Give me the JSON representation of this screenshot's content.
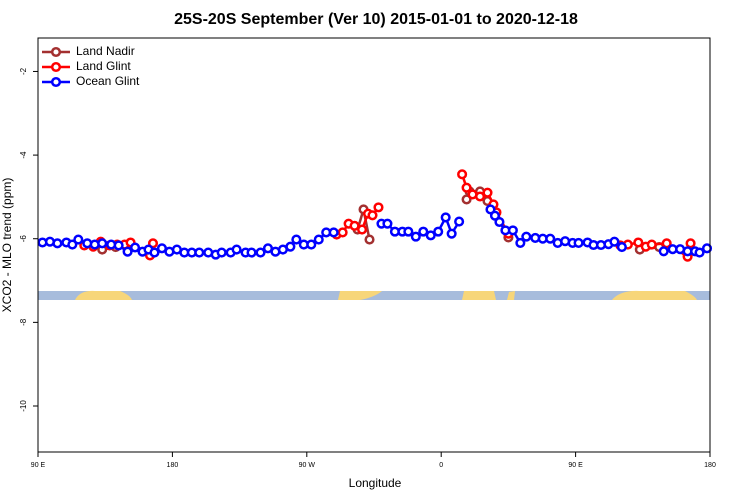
{
  "chart_data": {
    "type": "line",
    "title": "25S-20S September (Ver 10)   2015-01-01 to 2020-12-18",
    "x_label": "Longitude",
    "y_label": "XCO2 - MLO trend (ppm)",
    "xlim": [
      90,
      540
    ],
    "xticks": [
      {
        "value": 90,
        "label": "90 E"
      },
      {
        "value": 180,
        "label": "180"
      },
      {
        "value": 270,
        "label": "90 W"
      },
      {
        "value": 360,
        "label": "0"
      },
      {
        "value": 450,
        "label": "90 E"
      },
      {
        "value": 540,
        "label": "180"
      }
    ],
    "ylim": [
      -11.1,
      -1.2
    ],
    "yticks": [
      -10,
      -8,
      -6,
      -4,
      -2
    ],
    "legend": "top-left",
    "series": [
      {
        "name": "Land Nadir",
        "color": "#a33030",
        "x": [
          133,
          142,
          null,
          304,
          308,
          312,
          null,
          377,
          379,
          386,
          391,
          394,
          405,
          null,
          493,
          506
        ],
        "values": [
          -6.26,
          -6.2,
          null,
          -5.78,
          -5.3,
          -6.02,
          null,
          -5.06,
          -4.87,
          -4.87,
          -5.1,
          -5.25,
          -5.97,
          null,
          -6.26,
          -6.2
        ]
      },
      {
        "name": "Land Glint",
        "color": "#ff0000",
        "x": [
          121,
          127,
          132,
          138,
          143,
          148,
          152,
          165,
          167,
          null,
          290,
          294,
          298,
          302,
          307,
          311,
          314,
          318,
          null,
          374,
          377,
          381,
          386,
          391,
          395,
          397,
          405,
          null,
          480,
          485,
          492,
          497,
          501,
          511,
          525,
          527
        ],
        "values": [
          -6.16,
          -6.19,
          -6.07,
          -6.16,
          -6.14,
          -6.14,
          -6.09,
          -6.4,
          -6.11,
          null,
          -5.9,
          -5.85,
          -5.64,
          -5.69,
          -5.78,
          -5.4,
          -5.44,
          -5.25,
          null,
          -4.46,
          -4.78,
          -4.94,
          -4.99,
          -4.9,
          -5.18,
          -5.37,
          -5.88,
          null,
          -6.16,
          -6.14,
          -6.09,
          -6.19,
          -6.14,
          -6.11,
          -6.43,
          -6.11
        ]
      },
      {
        "name": "Ocean Glint",
        "color": "#0000ff",
        "x": [
          93,
          98,
          103,
          109,
          113,
          117,
          123,
          128,
          133,
          139,
          144,
          150,
          155,
          160,
          164,
          168,
          173,
          178,
          183,
          188,
          193,
          198,
          204,
          209,
          213,
          219,
          223,
          229,
          233,
          239,
          244,
          249,
          254,
          259,
          263,
          268,
          273,
          278,
          283,
          288,
          null,
          320,
          324,
          329,
          334,
          338,
          343,
          348,
          353,
          358,
          363,
          367,
          372,
          null,
          393,
          396,
          399,
          403,
          408,
          413,
          417,
          423,
          428,
          433,
          438,
          443,
          448,
          452,
          458,
          462,
          467,
          472,
          476,
          481,
          null,
          509,
          515,
          520,
          525,
          530,
          533,
          538
        ],
        "values": [
          -6.09,
          -6.07,
          -6.11,
          -6.09,
          -6.14,
          -6.02,
          -6.11,
          -6.14,
          -6.11,
          -6.14,
          -6.16,
          -6.31,
          -6.21,
          -6.31,
          -6.26,
          -6.33,
          -6.23,
          -6.31,
          -6.26,
          -6.33,
          -6.33,
          -6.33,
          -6.33,
          -6.38,
          -6.33,
          -6.33,
          -6.26,
          -6.33,
          -6.33,
          -6.33,
          -6.23,
          -6.31,
          -6.26,
          -6.19,
          -6.02,
          -6.14,
          -6.14,
          -6.02,
          -5.85,
          -5.85,
          null,
          -5.64,
          -5.64,
          -5.83,
          -5.83,
          -5.83,
          -5.95,
          -5.83,
          -5.92,
          -5.83,
          -5.49,
          -5.88,
          -5.59,
          null,
          -5.3,
          -5.45,
          -5.6,
          -5.8,
          -5.8,
          -6.1,
          -5.95,
          -5.98,
          -6.0,
          -6.0,
          -6.1,
          -6.06,
          -6.1,
          -6.1,
          -6.09,
          -6.15,
          -6.15,
          -6.13,
          -6.07,
          -6.2,
          null,
          -6.3,
          -6.25,
          -6.25,
          -6.3,
          -6.3,
          -6.33,
          -6.23
        ]
      }
    ]
  }
}
